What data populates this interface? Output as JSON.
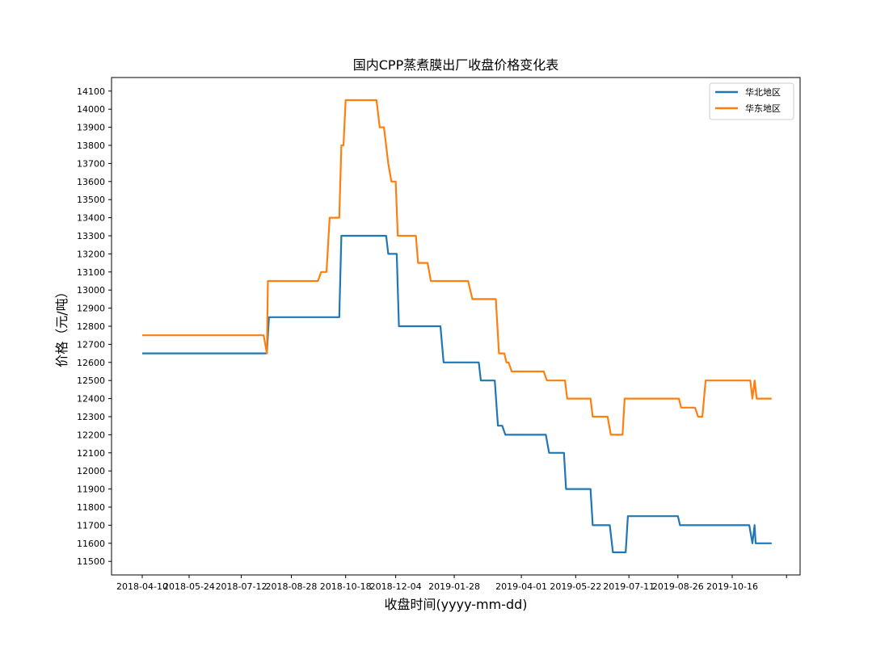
{
  "chart_data": {
    "type": "line",
    "title": "国内CPP蒸煮膜出厂收盘价格变化表",
    "xlabel": "收盘时间(yyyy-mm-dd)",
    "ylabel": "价格（元/吨）",
    "x_tick_labels": [
      "2018-04-10",
      "2018-05-24",
      "2018-07-12",
      "2018-08-28",
      "2018-10-18",
      "2018-12-04",
      "2019-01-28",
      "2019-04-01",
      "2019-05-22",
      "2019-07-11",
      "2019-08-26",
      "2019-10-16"
    ],
    "y_ticks": [
      11500,
      11600,
      11700,
      11800,
      11900,
      12000,
      12100,
      12200,
      12300,
      12400,
      12500,
      12600,
      12700,
      12800,
      12900,
      13000,
      13100,
      13200,
      13300,
      13400,
      13500,
      13600,
      13700,
      13800,
      13900,
      14000,
      14100
    ],
    "ylim": [
      11425,
      14175
    ],
    "grid": false,
    "legend_position": "top-right",
    "series": [
      {
        "name": "华北地区",
        "color": "#1f77b4",
        "points": [
          [
            "2018-04-10",
            12650
          ],
          [
            "2018-08-05",
            12650
          ],
          [
            "2018-08-07",
            12850
          ],
          [
            "2018-10-12",
            12850
          ],
          [
            "2018-10-14",
            13300
          ],
          [
            "2018-11-25",
            13300
          ],
          [
            "2018-11-27",
            13200
          ],
          [
            "2018-12-05",
            13200
          ],
          [
            "2018-12-07",
            12800
          ],
          [
            "2019-01-15",
            12800
          ],
          [
            "2019-01-18",
            12600
          ],
          [
            "2019-02-20",
            12600
          ],
          [
            "2019-02-22",
            12500
          ],
          [
            "2019-03-07",
            12500
          ],
          [
            "2019-03-10",
            12250
          ],
          [
            "2019-03-14",
            12250
          ],
          [
            "2019-03-17",
            12200
          ],
          [
            "2019-04-24",
            12200
          ],
          [
            "2019-04-27",
            12100
          ],
          [
            "2019-05-11",
            12100
          ],
          [
            "2019-05-13",
            11900
          ],
          [
            "2019-06-05",
            11900
          ],
          [
            "2019-06-07",
            11700
          ],
          [
            "2019-06-23",
            11700
          ],
          [
            "2019-06-26",
            11550
          ],
          [
            "2019-07-08",
            11550
          ],
          [
            "2019-07-10",
            11750
          ],
          [
            "2019-08-26",
            11750
          ],
          [
            "2019-08-28",
            11700
          ],
          [
            "2019-11-01",
            11700
          ],
          [
            "2019-11-04",
            11600
          ],
          [
            "2019-11-06",
            11700
          ],
          [
            "2019-11-07",
            11600
          ],
          [
            "2019-11-22",
            11600
          ]
        ]
      },
      {
        "name": "华东地区",
        "color": "#ff7f0e",
        "points": [
          [
            "2018-04-10",
            12750
          ],
          [
            "2018-08-02",
            12750
          ],
          [
            "2018-08-05",
            12650
          ],
          [
            "2018-08-06",
            13050
          ],
          [
            "2018-09-22",
            13050
          ],
          [
            "2018-09-25",
            13100
          ],
          [
            "2018-09-30",
            13100
          ],
          [
            "2018-10-03",
            13400
          ],
          [
            "2018-10-12",
            13400
          ],
          [
            "2018-10-14",
            13800
          ],
          [
            "2018-10-16",
            13800
          ],
          [
            "2018-10-18",
            14050
          ],
          [
            "2018-11-16",
            14050
          ],
          [
            "2018-11-19",
            13900
          ],
          [
            "2018-11-23",
            13900
          ],
          [
            "2018-11-27",
            13700
          ],
          [
            "2018-11-30",
            13600
          ],
          [
            "2018-12-04",
            13600
          ],
          [
            "2018-12-06",
            13300
          ],
          [
            "2018-12-23",
            13300
          ],
          [
            "2018-12-25",
            13150
          ],
          [
            "2019-01-03",
            13150
          ],
          [
            "2019-01-06",
            13050
          ],
          [
            "2019-02-10",
            13050
          ],
          [
            "2019-02-14",
            12950
          ],
          [
            "2019-03-08",
            12950
          ],
          [
            "2019-03-11",
            12650
          ],
          [
            "2019-03-16",
            12650
          ],
          [
            "2019-03-18",
            12600
          ],
          [
            "2019-03-20",
            12600
          ],
          [
            "2019-03-23",
            12550
          ],
          [
            "2019-04-22",
            12550
          ],
          [
            "2019-04-25",
            12500
          ],
          [
            "2019-05-12",
            12500
          ],
          [
            "2019-05-14",
            12400
          ],
          [
            "2019-06-05",
            12400
          ],
          [
            "2019-06-07",
            12300
          ],
          [
            "2019-06-21",
            12300
          ],
          [
            "2019-06-24",
            12200
          ],
          [
            "2019-07-05",
            12200
          ],
          [
            "2019-07-07",
            12400
          ],
          [
            "2019-08-27",
            12400
          ],
          [
            "2019-08-29",
            12350
          ],
          [
            "2019-09-11",
            12350
          ],
          [
            "2019-09-14",
            12300
          ],
          [
            "2019-09-18",
            12300
          ],
          [
            "2019-09-21",
            12500
          ],
          [
            "2019-11-02",
            12500
          ],
          [
            "2019-11-04",
            12400
          ],
          [
            "2019-11-06",
            12500
          ],
          [
            "2019-11-08",
            12400
          ],
          [
            "2019-11-22",
            12400
          ]
        ]
      }
    ]
  }
}
